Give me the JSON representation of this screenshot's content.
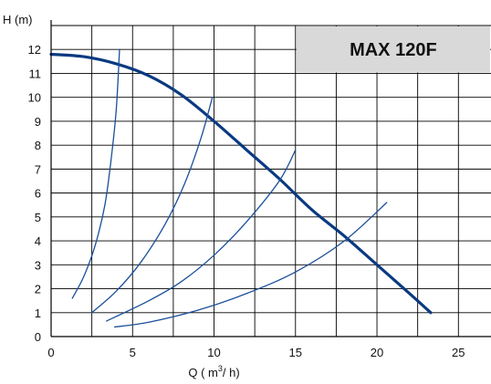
{
  "chart_data": {
    "type": "line",
    "title": "MAX 120F",
    "xlabel": "Q  ( m3/ h)",
    "xlabel_parts": {
      "prefix": "Q  ( m",
      "sup": "3",
      "suffix": "/ h)"
    },
    "ylabel": "H (m)",
    "xlim": [
      0,
      27
    ],
    "ylim": [
      0,
      13
    ],
    "xticks": [
      0,
      5,
      10,
      15,
      20,
      25
    ],
    "yticks": [
      0,
      1,
      2,
      3,
      4,
      5,
      6,
      7,
      8,
      9,
      10,
      11,
      12
    ],
    "grid": true,
    "legend": "none",
    "colors": {
      "pump_curve": "#0a3a80",
      "system_curves": "#1a4f9a",
      "grid": "#000000",
      "title": "#0a3a80",
      "title_box": "#d9d9d9",
      "plot_background": "#ffffff"
    },
    "series": [
      {
        "role": "pump",
        "points": [
          [
            0,
            11.8
          ],
          [
            2,
            11.7
          ],
          [
            4,
            11.4
          ],
          [
            6,
            10.9
          ],
          [
            8,
            10.1
          ],
          [
            10,
            9.0
          ],
          [
            12,
            7.8
          ],
          [
            14,
            6.6
          ],
          [
            16,
            5.3
          ],
          [
            18,
            4.2
          ],
          [
            20,
            3.0
          ],
          [
            22,
            1.8
          ],
          [
            23.3,
            1.0
          ]
        ]
      },
      {
        "role": "system",
        "points": [
          [
            1.3,
            1.6
          ],
          [
            2,
            2.5
          ],
          [
            2.7,
            3.8
          ],
          [
            3.3,
            5.5
          ],
          [
            3.7,
            7.5
          ],
          [
            4.0,
            9.5
          ],
          [
            4.2,
            12.0
          ]
        ]
      },
      {
        "role": "system",
        "points": [
          [
            2.5,
            1.0
          ],
          [
            4,
            1.9
          ],
          [
            5.5,
            3.1
          ],
          [
            7,
            4.7
          ],
          [
            8.2,
            6.4
          ],
          [
            9.2,
            8.3
          ],
          [
            9.9,
            10.0
          ]
        ]
      },
      {
        "role": "system",
        "points": [
          [
            3.4,
            0.65
          ],
          [
            6,
            1.5
          ],
          [
            8,
            2.3
          ],
          [
            10,
            3.4
          ],
          [
            12,
            4.8
          ],
          [
            14,
            6.5
          ],
          [
            15,
            7.8
          ]
        ]
      },
      {
        "role": "system",
        "points": [
          [
            3.9,
            0.4
          ],
          [
            6,
            0.6
          ],
          [
            9,
            1.1
          ],
          [
            12,
            1.8
          ],
          [
            15,
            2.7
          ],
          [
            18,
            4.0
          ],
          [
            20.6,
            5.6
          ]
        ]
      }
    ]
  }
}
